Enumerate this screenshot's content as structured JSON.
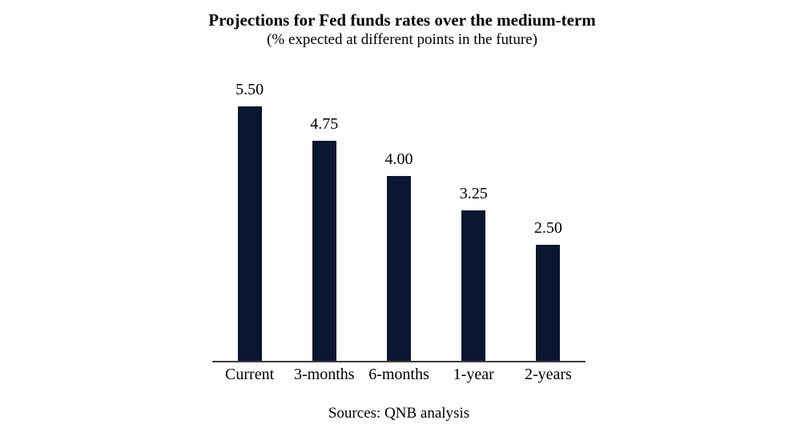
{
  "chart_data": {
    "type": "bar",
    "title": "Projections for Fed funds rates over the medium-term",
    "subtitle": "(% expected at different points in the future)",
    "source": "Sources: QNB analysis",
    "categories": [
      "Current",
      "3-months",
      "6-months",
      "1-year",
      "2-years"
    ],
    "values": [
      5.5,
      4.75,
      4.0,
      3.25,
      2.5
    ],
    "value_labels": [
      "5.50",
      "4.75",
      "4.00",
      "3.25",
      "2.50"
    ],
    "xlabel": "",
    "ylabel": "",
    "ylim": [
      0,
      5.5
    ],
    "grid": false,
    "legend": false,
    "bar_color": "#0b1630",
    "axis_color": "#3d3d3d",
    "text_color": "#000000",
    "background_color": "#ffffff"
  }
}
